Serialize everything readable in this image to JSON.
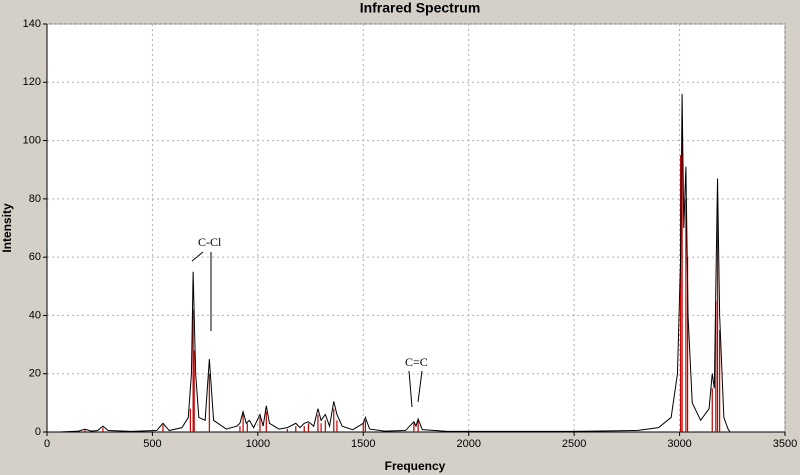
{
  "chart_data": {
    "type": "line",
    "title": "Infrared Spectrum",
    "x_label": "Frequency",
    "y_label": "Intensity",
    "x": [
      60,
      150,
      180,
      210,
      240,
      265,
      290,
      400,
      520,
      550,
      580,
      640,
      670,
      685,
      693,
      705,
      720,
      750,
      770,
      790,
      850,
      900,
      915,
      930,
      945,
      960,
      980,
      1010,
      1025,
      1040,
      1055,
      1100,
      1140,
      1180,
      1200,
      1220,
      1240,
      1265,
      1285,
      1300,
      1320,
      1340,
      1360,
      1375,
      1400,
      1450,
      1500,
      1510,
      1530,
      1600,
      1700,
      1740,
      1750,
      1760,
      1780,
      1900,
      2500,
      2800,
      2900,
      2960,
      2990,
      3005,
      3012,
      3020,
      3030,
      3040,
      3060,
      3100,
      3140,
      3155,
      3165,
      3172,
      3180,
      3190,
      3210,
      3230,
      3240
    ],
    "series": [
      {
        "color": "#000000",
        "values": [
          0,
          0.3,
          1,
          0.3,
          0.5,
          2,
          0.5,
          0.2,
          0.5,
          3,
          0.5,
          1.5,
          5,
          20,
          55,
          20,
          5,
          4,
          25,
          4,
          1,
          2,
          3,
          7,
          3,
          4,
          1.5,
          6,
          2,
          9,
          3,
          1,
          1.5,
          3,
          1.5,
          3,
          3.5,
          2,
          8,
          4,
          6,
          2,
          10.5,
          6,
          2,
          0.8,
          3,
          5,
          1,
          0.3,
          0.5,
          3.5,
          2,
          4.5,
          0.8,
          0.2,
          0.2,
          0.5,
          1.5,
          5,
          20,
          60,
          116,
          70,
          91,
          40,
          10,
          4,
          8,
          20,
          15,
          50,
          87,
          40,
          5,
          1,
          0
        ]
      }
    ],
    "sticks": {
      "color": "#c00000",
      "x": [
        180,
        265,
        550,
        680,
        693,
        698,
        770,
        915,
        930,
        950,
        1010,
        1040,
        1140,
        1180,
        1220,
        1240,
        1285,
        1300,
        1320,
        1360,
        1375,
        1500,
        1510,
        1740,
        1760,
        3005,
        3012,
        3030,
        3038,
        3155,
        3172,
        3180,
        3190
      ],
      "values": [
        1,
        1.5,
        2.5,
        8,
        42,
        28,
        20,
        2,
        6,
        3,
        5,
        7,
        1,
        2,
        2,
        3,
        6,
        3,
        4,
        8,
        4,
        3,
        4,
        3,
        4,
        95,
        108,
        80,
        60,
        15,
        45,
        78,
        35
      ]
    },
    "annotations": [
      "C-Cl",
      "C=C"
    ],
    "xlim": [
      0,
      3500
    ],
    "xticks": [
      0,
      500,
      1000,
      1500,
      2000,
      2500,
      3000,
      3500
    ],
    "ylim": [
      0,
      140
    ],
    "yticks": [
      0,
      20,
      40,
      60,
      80,
      100,
      120,
      140
    ],
    "grid": true
  }
}
